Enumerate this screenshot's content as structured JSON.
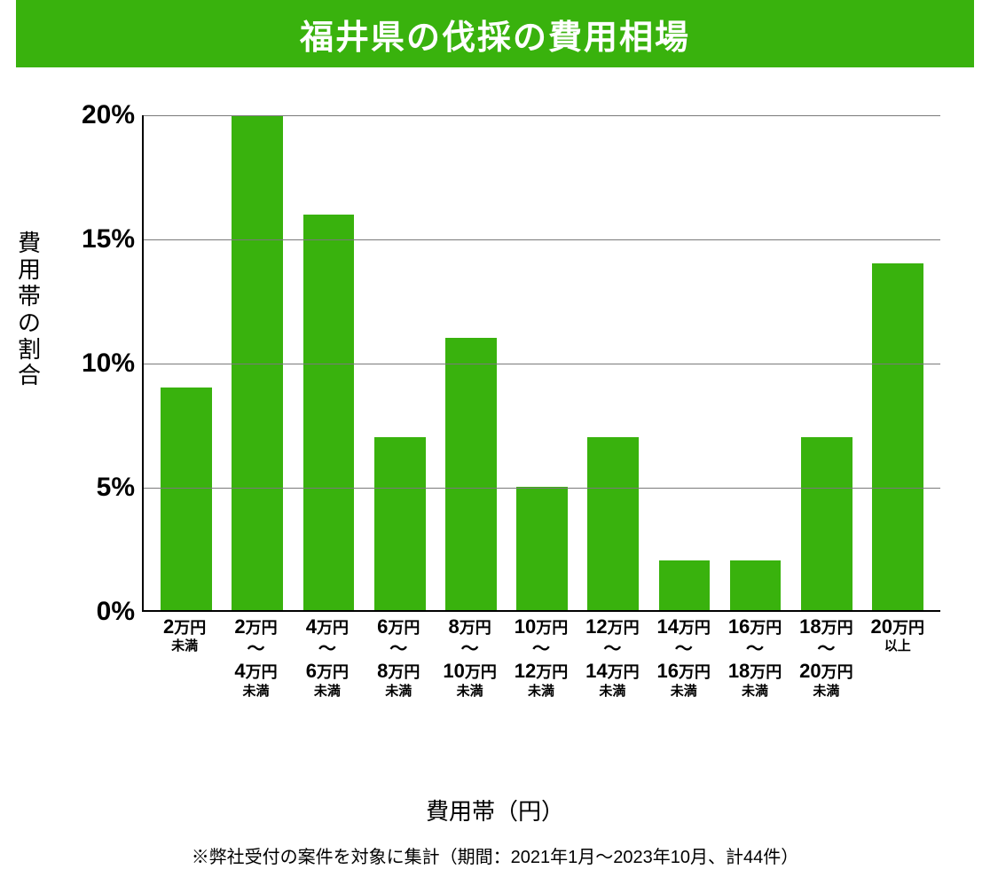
{
  "chart": {
    "type": "bar",
    "title": "福井県の伐採の費用相場",
    "title_bg_color": "#39b20d",
    "title_text_color": "#ffffff",
    "y_axis_title": "費用帯の割合",
    "x_axis_title": "費用帯（円）",
    "footnote": "※弊社受付の案件を対象に集計（期間：2021年1月～2023年10月、計44件）",
    "ylim": [
      0,
      20
    ],
    "ytick_step": 5,
    "ytick_suffix": "%",
    "bar_color": "#39b20d",
    "grid_color": "#7a7a7a",
    "axis_color": "#000000",
    "background_color": "#ffffff",
    "categories": [
      {
        "top_num": "2",
        "top_unit": "万円",
        "sub1": "未満",
        "bottom_num": "",
        "bottom_unit": "",
        "sub2": ""
      },
      {
        "top_num": "2",
        "top_unit": "万円",
        "sub1": "",
        "bottom_num": "4",
        "bottom_unit": "万円",
        "sub2": "未満"
      },
      {
        "top_num": "4",
        "top_unit": "万円",
        "sub1": "",
        "bottom_num": "6",
        "bottom_unit": "万円",
        "sub2": "未満"
      },
      {
        "top_num": "6",
        "top_unit": "万円",
        "sub1": "",
        "bottom_num": "8",
        "bottom_unit": "万円",
        "sub2": "未満"
      },
      {
        "top_num": "8",
        "top_unit": "万円",
        "sub1": "",
        "bottom_num": "10",
        "bottom_unit": "万円",
        "sub2": "未満"
      },
      {
        "top_num": "10",
        "top_unit": "万円",
        "sub1": "",
        "bottom_num": "12",
        "bottom_unit": "万円",
        "sub2": "未満"
      },
      {
        "top_num": "12",
        "top_unit": "万円",
        "sub1": "",
        "bottom_num": "14",
        "bottom_unit": "万円",
        "sub2": "未満"
      },
      {
        "top_num": "14",
        "top_unit": "万円",
        "sub1": "",
        "bottom_num": "16",
        "bottom_unit": "万円",
        "sub2": "未満"
      },
      {
        "top_num": "16",
        "top_unit": "万円",
        "sub1": "",
        "bottom_num": "18",
        "bottom_unit": "万円",
        "sub2": "未満"
      },
      {
        "top_num": "18",
        "top_unit": "万円",
        "sub1": "",
        "bottom_num": "20",
        "bottom_unit": "万円",
        "sub2": "未満"
      },
      {
        "top_num": "20",
        "top_unit": "万円",
        "sub1": "以上",
        "bottom_num": "",
        "bottom_unit": "",
        "sub2": ""
      }
    ],
    "values": [
      9,
      20,
      16,
      7,
      11,
      5,
      7,
      2,
      2,
      7,
      14
    ]
  }
}
